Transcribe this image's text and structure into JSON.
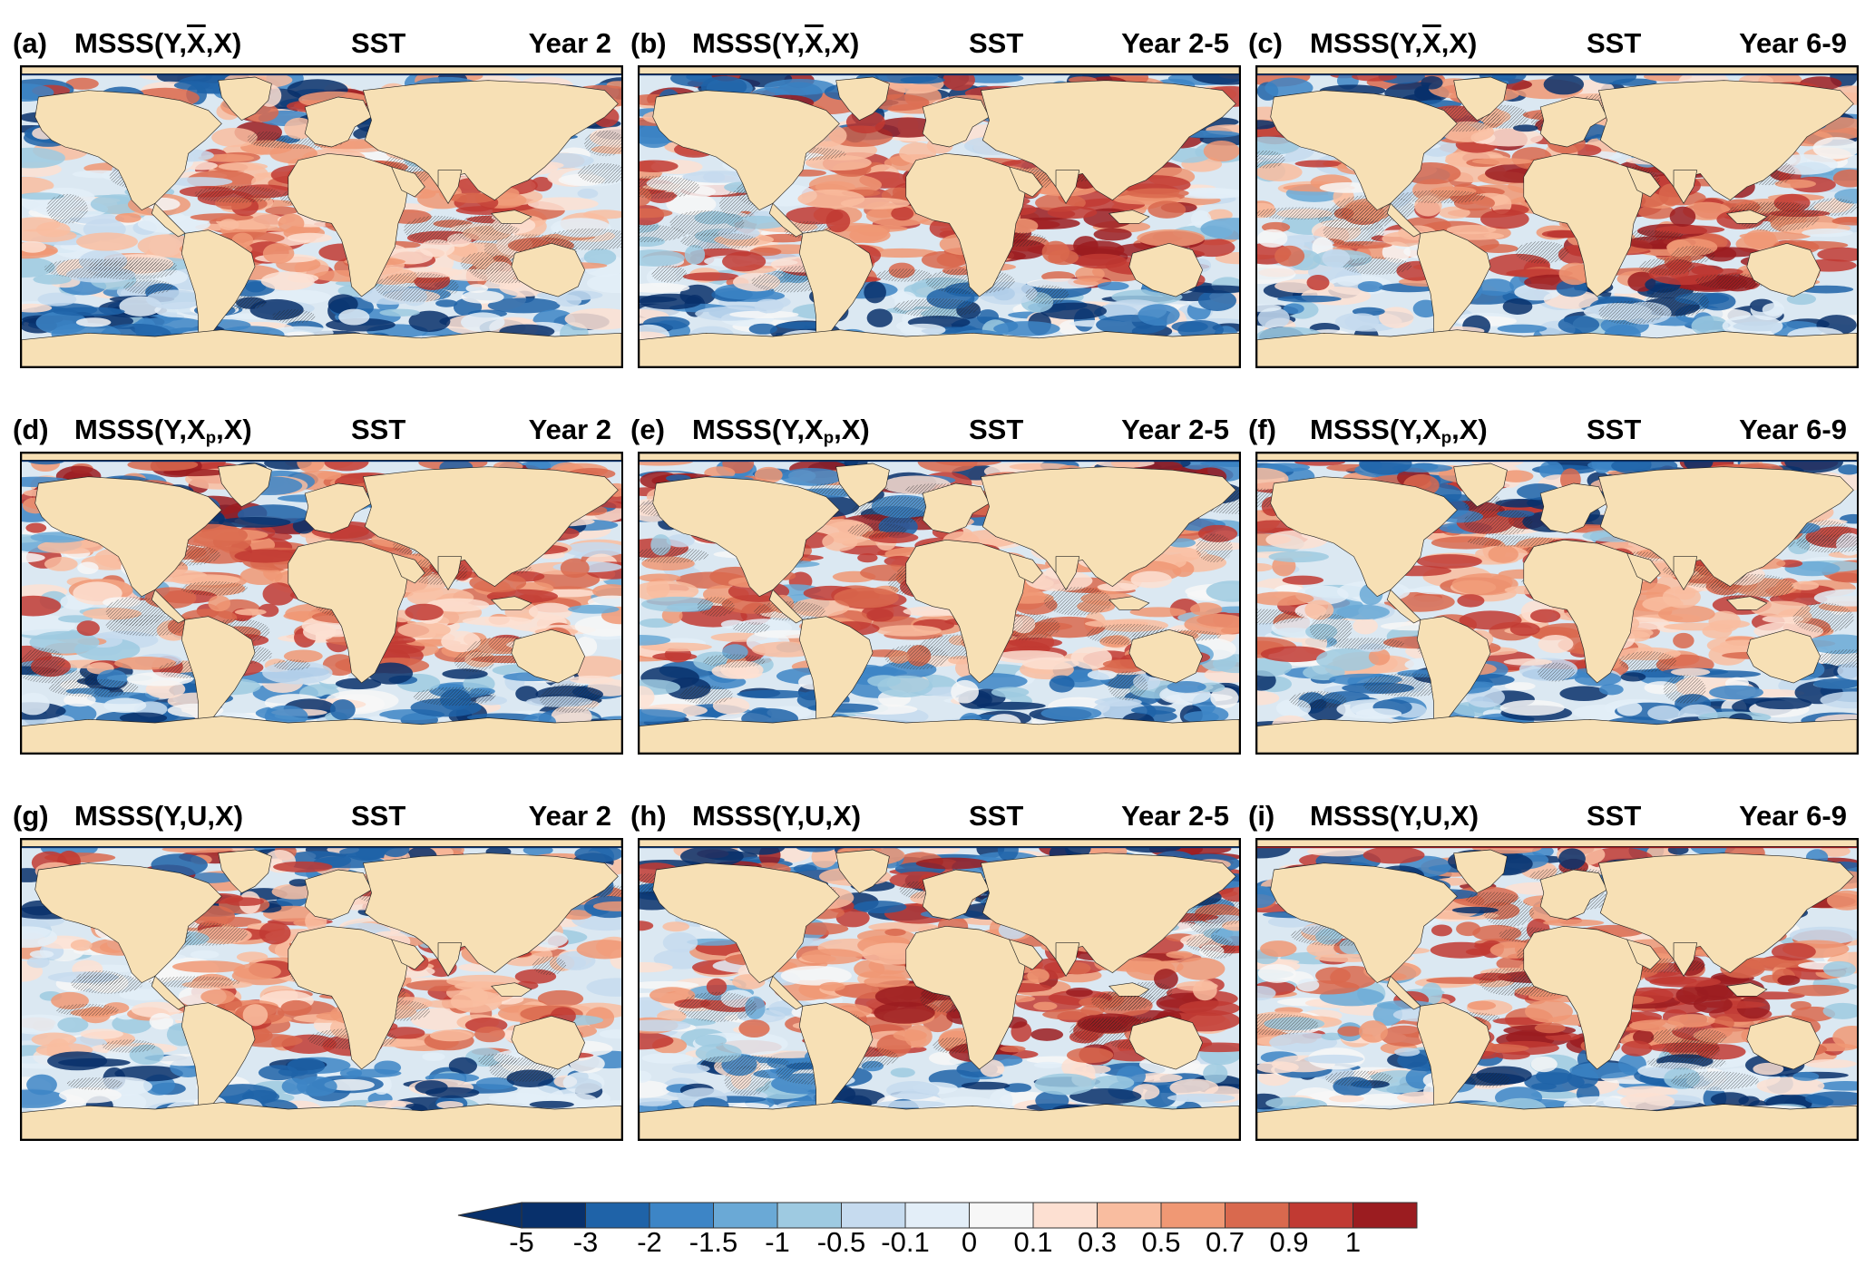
{
  "panels": [
    {
      "letter": "(a)",
      "metric_pre": "MSSS(Y,",
      "metric_sym": "X",
      "metric_sub": "",
      "metric_overline": true,
      "metric_post": ",X)",
      "variable": "SST",
      "lead": "Year 2",
      "pattern": "a"
    },
    {
      "letter": "(b)",
      "metric_pre": "MSSS(Y,",
      "metric_sym": "X",
      "metric_sub": "",
      "metric_overline": true,
      "metric_post": ",X)",
      "variable": "SST",
      "lead": "Year 2-5",
      "pattern": "b"
    },
    {
      "letter": "(c)",
      "metric_pre": "MSSS(Y,",
      "metric_sym": "X",
      "metric_sub": "",
      "metric_overline": true,
      "metric_post": ",X)",
      "variable": "SST",
      "lead": "Year 6-9",
      "pattern": "c"
    },
    {
      "letter": "(d)",
      "metric_pre": "MSSS(Y,",
      "metric_sym": "X",
      "metric_sub": "p",
      "metric_overline": false,
      "metric_post": ",X)",
      "variable": "SST",
      "lead": "Year 2",
      "pattern": "d"
    },
    {
      "letter": "(e)",
      "metric_pre": "MSSS(Y,",
      "metric_sym": "X",
      "metric_sub": "p",
      "metric_overline": false,
      "metric_post": ",X)",
      "variable": "SST",
      "lead": "Year 2-5",
      "pattern": "e"
    },
    {
      "letter": "(f)",
      "metric_pre": "MSSS(Y,",
      "metric_sym": "X",
      "metric_sub": "p",
      "metric_overline": false,
      "metric_post": ",X)",
      "variable": "SST",
      "lead": "Year 6-9",
      "pattern": "f"
    },
    {
      "letter": "(g)",
      "metric_pre": "MSSS(Y,",
      "metric_sym": "U",
      "metric_sub": "",
      "metric_overline": false,
      "metric_post": ",X)",
      "variable": "SST",
      "lead": "Year 2",
      "pattern": "g"
    },
    {
      "letter": "(h)",
      "metric_pre": "MSSS(Y,",
      "metric_sym": "U",
      "metric_sub": "",
      "metric_overline": false,
      "metric_post": ",X)",
      "variable": "SST",
      "lead": "Year 2-5",
      "pattern": "h"
    },
    {
      "letter": "(i)",
      "metric_pre": "MSSS(Y,",
      "metric_sym": "U",
      "metric_sub": "",
      "metric_overline": false,
      "metric_post": ",X)",
      "variable": "SST",
      "lead": "Year 6-9",
      "pattern": "i"
    }
  ],
  "colorbar": {
    "labels": [
      "-5",
      "-3",
      "-2",
      "-1.5",
      "-1",
      "-0.5",
      "-0.1",
      "0",
      "0.1",
      "0.3",
      "0.5",
      "0.7",
      "0.9",
      "1"
    ],
    "colors": [
      "#08306b",
      "#1f63a8",
      "#3d85c6",
      "#6aa9d6",
      "#9ecae1",
      "#c6dbef",
      "#e3eef8",
      "#f7f7f7",
      "#fde0d2",
      "#f9bda0",
      "#f09874",
      "#d9694e",
      "#c13a33",
      "#9b1c20"
    ],
    "extend": "min"
  },
  "colors": {
    "land": "#f7e0b5",
    "ocean_neutral": "#dbe8f2",
    "strong_negative": "#08306b",
    "strong_positive": "#9b1c20"
  }
}
